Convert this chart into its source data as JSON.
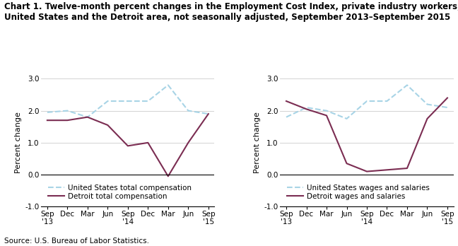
{
  "title_line1": "Chart 1. Twelve-month percent changes in the Employment Cost Index, private industry workers,",
  "title_line2": "United States and the Detroit area, not seasonally adjusted, September 2013–September 2015",
  "source": "Source: U.S. Bureau of Labor Statistics.",
  "x_labels": [
    "Sep\n'13",
    "Dec",
    "Mar",
    "Jun",
    "Sep\n'14",
    "Dec",
    "Mar",
    "Jun",
    "Sep\n'15"
  ],
  "ylim": [
    -1.0,
    3.0
  ],
  "yticks": [
    -1.0,
    0.0,
    1.0,
    2.0,
    3.0
  ],
  "ylabel": "Percent change",
  "chart1": {
    "us_total": [
      1.95,
      2.0,
      1.8,
      2.3,
      2.3,
      2.3,
      2.8,
      2.0,
      1.9
    ],
    "detroit_total": [
      1.7,
      1.7,
      1.8,
      1.55,
      0.9,
      1.0,
      -0.05,
      1.0,
      1.9
    ],
    "legend1": "United States total compensation",
    "legend2": "Detroit total compensation"
  },
  "chart2": {
    "us_wages": [
      1.8,
      2.1,
      2.0,
      1.75,
      2.3,
      2.3,
      2.8,
      2.2,
      2.1
    ],
    "detroit_wages": [
      2.3,
      2.05,
      1.85,
      0.35,
      0.1,
      0.15,
      0.2,
      1.75,
      2.4
    ],
    "legend1": "United States wages and salaries",
    "legend2": "Detroit wages and salaries"
  },
  "us_color": "#a8d4e6",
  "detroit_color": "#7b2d52",
  "linewidth": 1.5,
  "title_fontsize": 8.5,
  "axis_label_fontsize": 8,
  "tick_fontsize": 7.5,
  "legend_fontsize": 7.5,
  "source_fontsize": 7.5
}
